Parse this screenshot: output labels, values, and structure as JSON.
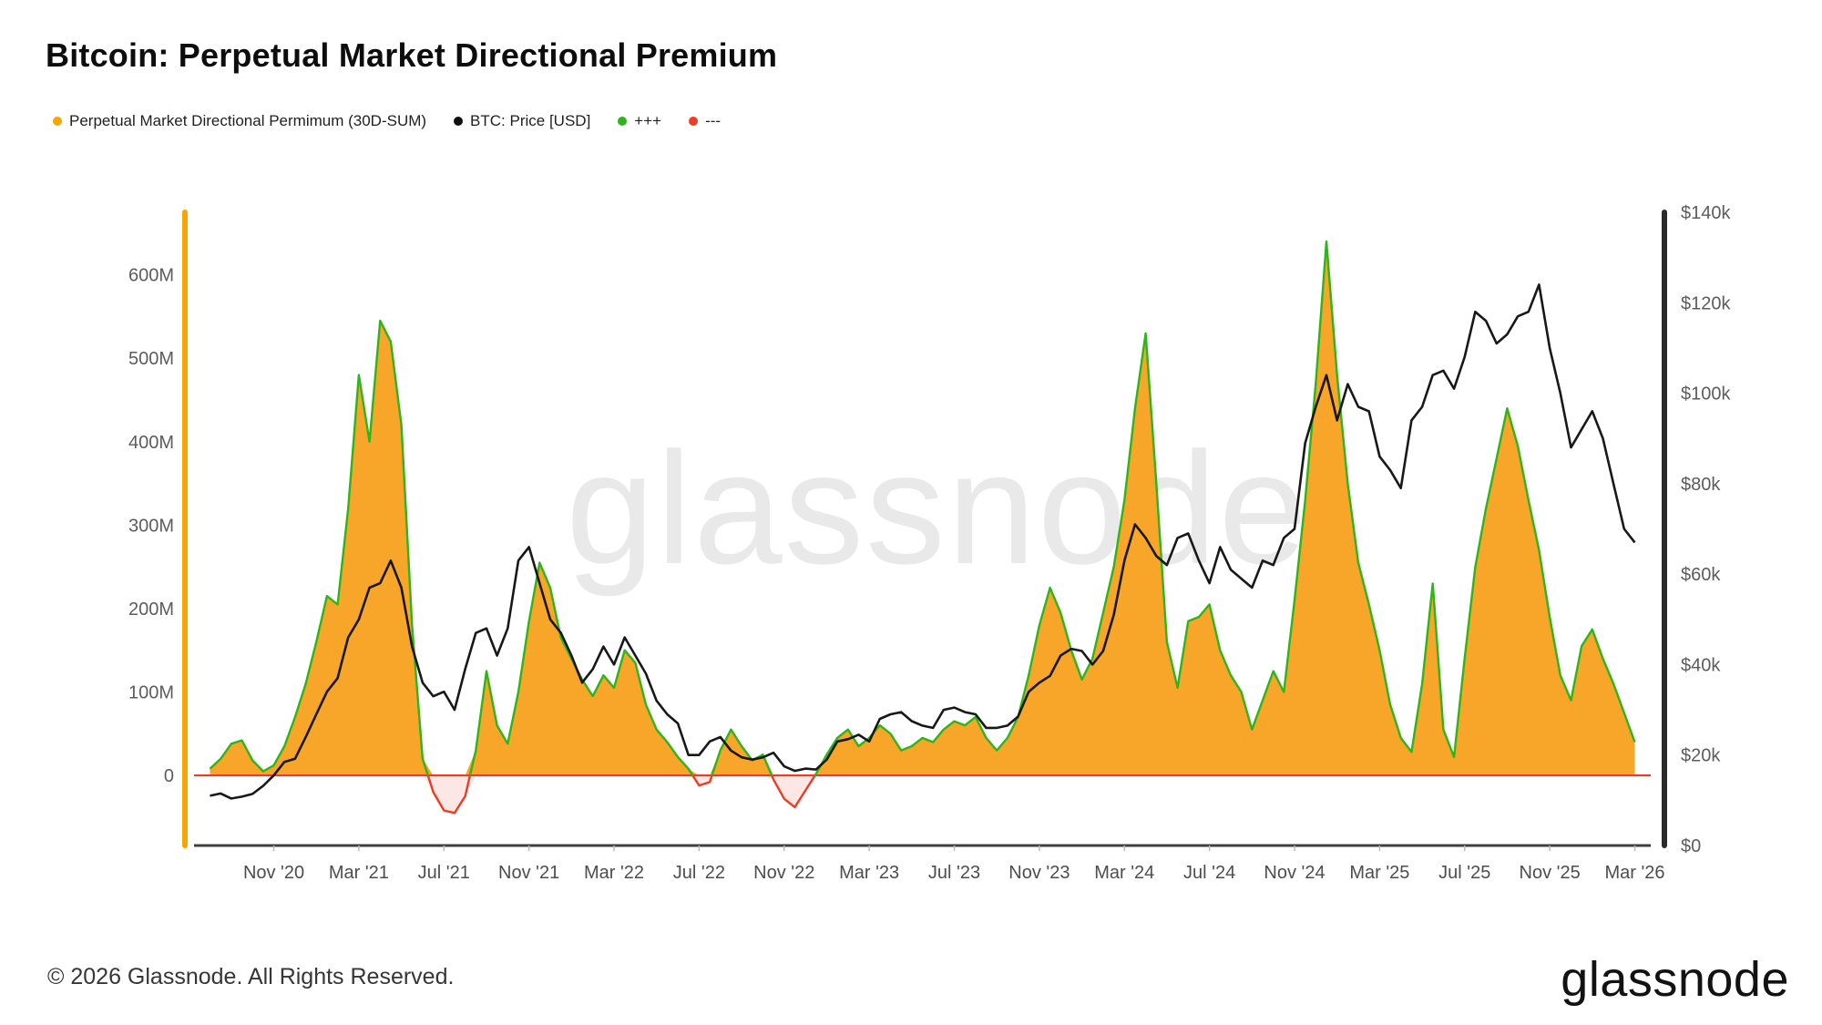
{
  "page": {
    "title": "Bitcoin: Perpetual Market Directional Premium",
    "footer_copyright": "© 2026 Glassnode. All Rights Reserved.",
    "brand_logo": "glassnode"
  },
  "legend": {
    "items": [
      {
        "label": "Perpetual Market Directional Permimum (30D-SUM)",
        "color": "#F7A600"
      },
      {
        "label": "BTC: Price [USD]",
        "color": "#111111"
      },
      {
        "label": "+++",
        "color": "#2DB51C"
      },
      {
        "label": "---",
        "color": "#EE3B23"
      }
    ]
  },
  "chart_data": {
    "type": "area",
    "title": "Bitcoin: Perpetual Market Directional Premium",
    "watermark": "glassnode",
    "x_unit": "months since Aug 2020, sampled every 0.5 month",
    "x_step_months": 0.5,
    "x_domain": [
      -0.75,
      67.75
    ],
    "x_ticks": [
      {
        "m": 3,
        "label": "Nov '20"
      },
      {
        "m": 7,
        "label": "Mar '21"
      },
      {
        "m": 11,
        "label": "Jul '21"
      },
      {
        "m": 15,
        "label": "Nov '21"
      },
      {
        "m": 19,
        "label": "Mar '22"
      },
      {
        "m": 23,
        "label": "Jul '22"
      },
      {
        "m": 27,
        "label": "Nov '22"
      },
      {
        "m": 31,
        "label": "Mar '23"
      },
      {
        "m": 35,
        "label": "Jul '23"
      },
      {
        "m": 39,
        "label": "Nov '23"
      },
      {
        "m": 43,
        "label": "Mar '24"
      },
      {
        "m": 47,
        "label": "Jul '24"
      },
      {
        "m": 51,
        "label": "Nov '24"
      },
      {
        "m": 55,
        "label": "Mar '25"
      },
      {
        "m": 59,
        "label": "Jul '25"
      },
      {
        "m": 63,
        "label": "Nov '25"
      },
      {
        "m": 67,
        "label": "Mar '26"
      }
    ],
    "left_axis": {
      "unit": "M",
      "domain": [
        -84,
        675
      ],
      "ticks": [
        {
          "v": 0,
          "label": "0"
        },
        {
          "v": 100,
          "label": "100M"
        },
        {
          "v": 200,
          "label": "200M"
        },
        {
          "v": 300,
          "label": "300M"
        },
        {
          "v": 400,
          "label": "400M"
        },
        {
          "v": 500,
          "label": "500M"
        },
        {
          "v": 600,
          "label": "600M"
        }
      ]
    },
    "right_axis": {
      "unit": "k",
      "domain": [
        0,
        140
      ],
      "ticks": [
        {
          "v": 0,
          "label": "$0"
        },
        {
          "v": 20,
          "label": "$20k"
        },
        {
          "v": 40,
          "label": "$40k"
        },
        {
          "v": 60,
          "label": "$60k"
        },
        {
          "v": 80,
          "label": "$80k"
        },
        {
          "v": 100,
          "label": "$100k"
        },
        {
          "v": 120,
          "label": "$120k"
        },
        {
          "v": 140,
          "label": "$140k"
        }
      ]
    },
    "zero_line_color": "#EE3B23",
    "axis_bar_left_color": "#F7A600",
    "axis_bar_right_color": "#2B2B2B",
    "series": [
      {
        "name": "Perpetual Market Directional Permimum (30D-SUM)",
        "axis": "left",
        "unit": "millions USD",
        "style": "area",
        "fill": "#F7A629",
        "line_positive": "#2DB51C",
        "line_negative": "#EE3B23",
        "values": [
          8,
          20,
          38,
          42,
          18,
          5,
          12,
          35,
          70,
          110,
          160,
          215,
          205,
          320,
          480,
          400,
          545,
          520,
          420,
          180,
          20,
          -20,
          -42,
          -45,
          -25,
          30,
          125,
          60,
          38,
          100,
          185,
          255,
          225,
          165,
          140,
          115,
          95,
          120,
          105,
          150,
          135,
          85,
          55,
          40,
          22,
          8,
          -12,
          -8,
          30,
          55,
          35,
          18,
          25,
          -5,
          -28,
          -38,
          -18,
          2,
          25,
          45,
          55,
          35,
          45,
          60,
          50,
          30,
          35,
          45,
          40,
          55,
          65,
          60,
          70,
          45,
          30,
          45,
          70,
          120,
          180,
          225,
          195,
          150,
          115,
          140,
          195,
          250,
          330,
          440,
          530,
          350,
          160,
          105,
          185,
          190,
          205,
          150,
          120,
          100,
          55,
          90,
          125,
          100,
          210,
          330,
          470,
          640,
          480,
          350,
          255,
          205,
          150,
          85,
          45,
          28,
          110,
          230,
          55,
          22,
          140,
          250,
          320,
          380,
          440,
          395,
          330,
          270,
          190,
          120,
          90,
          155,
          175,
          140,
          110,
          75,
          40
        ]
      },
      {
        "name": "BTC: Price [USD]",
        "axis": "right",
        "unit": "thousands USD",
        "style": "line",
        "color": "#181818",
        "values": [
          11,
          11.5,
          10.4,
          10.8,
          11.4,
          13.2,
          15.5,
          18.5,
          19.2,
          24,
          29,
          34,
          37,
          46,
          50,
          57,
          58,
          63,
          57,
          44,
          36,
          33,
          34,
          30,
          39,
          47,
          48,
          42,
          48,
          63,
          66,
          58,
          50,
          47,
          42,
          36,
          39,
          44,
          40,
          46,
          42,
          38,
          32,
          29,
          27,
          20,
          20,
          23,
          24,
          21,
          19.5,
          19,
          19.5,
          20.5,
          17.5,
          16.5,
          17,
          16.8,
          19,
          23,
          23.5,
          24.5,
          23,
          28,
          29,
          29.5,
          27.5,
          26.5,
          26,
          30,
          30.5,
          29.5,
          29,
          26,
          26,
          26.5,
          28.5,
          34,
          36,
          37.5,
          42,
          43.5,
          43,
          40,
          43,
          51,
          63,
          71,
          68,
          64,
          62,
          68,
          69,
          63,
          58,
          66,
          61,
          59,
          57,
          63,
          62,
          68,
          70,
          89,
          97,
          104,
          94,
          102,
          97,
          96,
          86,
          83,
          79,
          94,
          97,
          104,
          105,
          101,
          108,
          118,
          116,
          111,
          113,
          117,
          118,
          124,
          110,
          100,
          88,
          92,
          96,
          90,
          80,
          70,
          67
        ]
      }
    ]
  }
}
